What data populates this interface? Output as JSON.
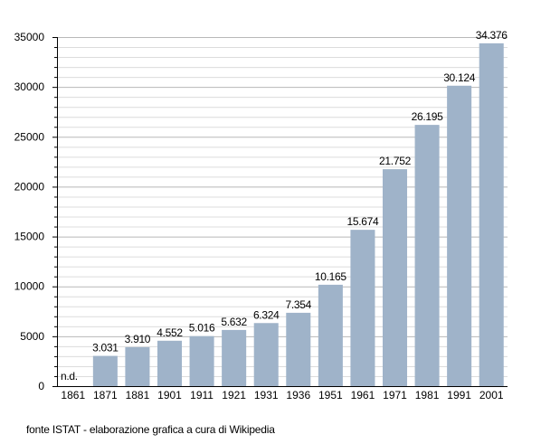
{
  "chart_data": {
    "type": "bar",
    "title": "",
    "xlabel": "",
    "ylabel": "",
    "categories": [
      "1861",
      "1871",
      "1881",
      "1901",
      "1911",
      "1921",
      "1931",
      "1936",
      "1951",
      "1961",
      "1971",
      "1981",
      "1991",
      "2001"
    ],
    "values": [
      null,
      3031,
      3910,
      4552,
      5016,
      5632,
      6324,
      7354,
      10165,
      15674,
      21752,
      26195,
      30124,
      34376
    ],
    "data_labels": [
      "n.d.",
      "3.031",
      "3.910",
      "4.552",
      "5.016",
      "5.632",
      "6.324",
      "7.354",
      "10.165",
      "15.674",
      "21.752",
      "26.195",
      "30.124",
      "34.376"
    ],
    "ylim": [
      0,
      35000
    ],
    "yticks": [
      0,
      5000,
      10000,
      15000,
      20000,
      25000,
      30000,
      35000
    ],
    "ytick_labels": [
      "0",
      "5000",
      "10000",
      "15000",
      "20000",
      "25000",
      "30000",
      "35000"
    ],
    "grid": true,
    "colors": {
      "bar": "#9fb3c9",
      "grid": "#cfcfcf"
    }
  },
  "footer": {
    "source": "fonte ISTAT - elaborazione grafica a cura di Wikipedia"
  }
}
